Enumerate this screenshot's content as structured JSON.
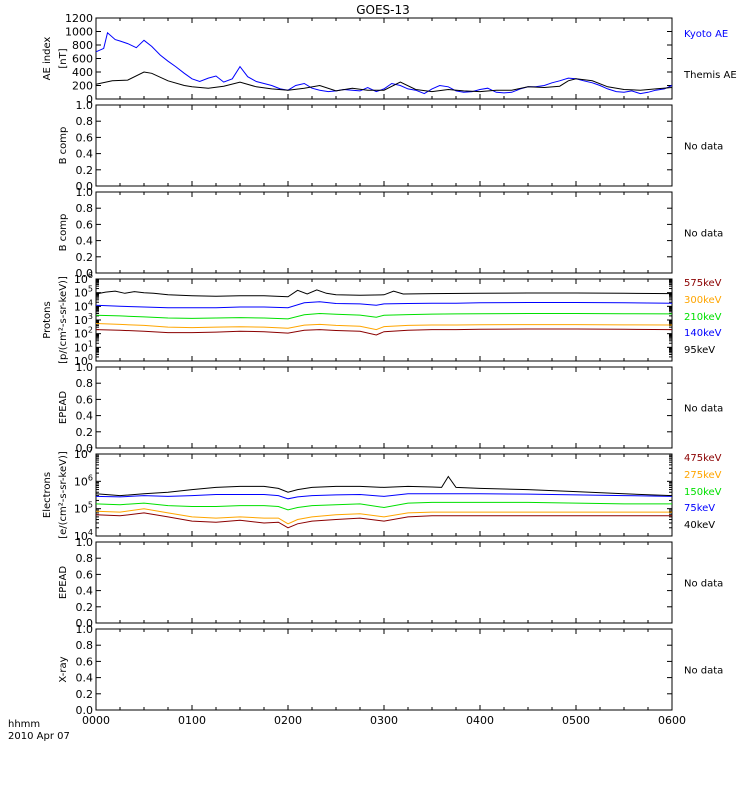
{
  "title": "GOES-13",
  "time_axis": {
    "ticks": [
      "0000",
      "0100",
      "0200",
      "0300",
      "0400",
      "0500",
      "0600"
    ],
    "label_line1": "hhmm",
    "label_line2": "2010 Apr 07"
  },
  "chart_data": [
    {
      "id": "ae",
      "type": "line",
      "ylabel_line1": "AE index",
      "ylabel_line2": "[nT]",
      "ylim": [
        0,
        1200
      ],
      "yticks": [
        "0",
        "200",
        "400",
        "600",
        "800",
        "1000",
        "1200"
      ],
      "series": [
        {
          "name": "Kyoto AE",
          "color": "#0000ff",
          "x": [
            0,
            0.08,
            0.12,
            0.2,
            0.25,
            0.33,
            0.42,
            0.5,
            0.58,
            0.67,
            0.75,
            0.83,
            0.92,
            1.0,
            1.08,
            1.17,
            1.25,
            1.33,
            1.42,
            1.5,
            1.58,
            1.67,
            1.75,
            1.83,
            1.92,
            2.0,
            2.08,
            2.17,
            2.25,
            2.33,
            2.42,
            2.5,
            2.58,
            2.67,
            2.75,
            2.83,
            2.92,
            3.0,
            3.08,
            3.17,
            3.25,
            3.33,
            3.42,
            3.5,
            3.58,
            3.67,
            3.75,
            3.83,
            3.92,
            4.0,
            4.08,
            4.17,
            4.25,
            4.33,
            4.42,
            4.5,
            4.58,
            4.67,
            4.75,
            4.83,
            4.92,
            5.0,
            5.08,
            5.17,
            5.25,
            5.33,
            5.42,
            5.5,
            5.58,
            5.67,
            5.75,
            5.83,
            5.92,
            6.0
          ],
          "y": [
            700,
            750,
            980,
            880,
            860,
            820,
            760,
            870,
            780,
            650,
            560,
            480,
            380,
            300,
            260,
            310,
            340,
            250,
            300,
            480,
            330,
            260,
            230,
            200,
            150,
            130,
            200,
            230,
            160,
            130,
            110,
            120,
            140,
            130,
            120,
            170,
            110,
            150,
            230,
            200,
            150,
            130,
            80,
            150,
            200,
            180,
            120,
            100,
            110,
            140,
            160,
            100,
            90,
            100,
            150,
            180,
            180,
            200,
            240,
            270,
            310,
            300,
            270,
            240,
            200,
            150,
            110,
            100,
            120,
            80,
            100,
            130,
            150,
            200
          ]
        },
        {
          "name": "Themis AE",
          "color": "#000000",
          "x": [
            0,
            0.17,
            0.33,
            0.5,
            0.58,
            0.75,
            0.92,
            1.0,
            1.17,
            1.33,
            1.5,
            1.67,
            1.83,
            2.0,
            2.17,
            2.33,
            2.5,
            2.67,
            2.83,
            3.0,
            3.17,
            3.33,
            3.5,
            3.67,
            3.83,
            4.0,
            4.17,
            4.33,
            4.5,
            4.67,
            4.83,
            4.92,
            5.0,
            5.17,
            5.33,
            5.5,
            5.67,
            5.83,
            6.0
          ],
          "y": [
            220,
            270,
            280,
            400,
            380,
            270,
            200,
            180,
            160,
            190,
            250,
            180,
            150,
            130,
            160,
            200,
            120,
            160,
            130,
            130,
            250,
            140,
            110,
            140,
            120,
            110,
            130,
            130,
            180,
            170,
            190,
            270,
            300,
            270,
            180,
            140,
            130,
            150,
            170
          ]
        }
      ],
      "annotation": ""
    },
    {
      "id": "bcomp1",
      "type": "line",
      "ylabel_line1": "B comp",
      "ylim": [
        0,
        1
      ],
      "yticks": [
        "0.0",
        "0.2",
        "0.4",
        "0.6",
        "0.8",
        "1.0"
      ],
      "series": [],
      "annotation": "No data"
    },
    {
      "id": "bcomp2",
      "type": "line",
      "ylabel_line1": "B comp",
      "ylim": [
        0,
        1
      ],
      "yticks": [
        "0.0",
        "0.2",
        "0.4",
        "0.6",
        "0.8",
        "1.0"
      ],
      "series": [],
      "annotation": "No data"
    },
    {
      "id": "protons",
      "type": "line",
      "yscale": "log",
      "ylabel_line1": "Protons",
      "ylabel_line2": "[p/(cm²-s-sr-keV)]",
      "ylim_exp": [
        0,
        6
      ],
      "yticks": [
        {
          "base": "10",
          "exp": "0"
        },
        {
          "base": "10",
          "exp": "1"
        },
        {
          "base": "10",
          "exp": "2"
        },
        {
          "base": "10",
          "exp": "3"
        },
        {
          "base": "10",
          "exp": "4"
        },
        {
          "base": "10",
          "exp": "5"
        },
        {
          "base": "10",
          "exp": "6"
        }
      ],
      "series": [
        {
          "name": "575keV",
          "color": "#8b0000",
          "x": [
            0,
            0.25,
            0.5,
            0.75,
            1.0,
            1.25,
            1.5,
            1.75,
            2.0,
            2.17,
            2.33,
            2.5,
            2.75,
            2.92,
            3.0,
            3.25,
            3.5,
            3.75,
            4.0,
            4.5,
            5.0,
            5.5,
            6.0
          ],
          "y": [
            200,
            180,
            150,
            120,
            120,
            130,
            150,
            140,
            110,
            180,
            200,
            170,
            150,
            80,
            140,
            180,
            200,
            200,
            210,
            220,
            220,
            210,
            200
          ]
        },
        {
          "name": "300keV",
          "color": "#ffa500",
          "x": [
            0,
            0.25,
            0.5,
            0.75,
            1.0,
            1.25,
            1.5,
            1.75,
            2.0,
            2.17,
            2.33,
            2.5,
            2.75,
            2.92,
            3.0,
            3.25,
            3.5,
            3.75,
            4.0,
            4.5,
            5.0,
            5.5,
            6.0
          ],
          "y": [
            550,
            480,
            400,
            300,
            280,
            300,
            320,
            300,
            250,
            420,
            480,
            400,
            350,
            200,
            330,
            400,
            430,
            430,
            450,
            460,
            460,
            440,
            430
          ]
        },
        {
          "name": "210keV",
          "color": "#00e000",
          "x": [
            0,
            0.25,
            0.5,
            0.75,
            1.0,
            1.25,
            1.5,
            1.75,
            2.0,
            2.17,
            2.33,
            2.5,
            2.75,
            2.92,
            3.0,
            3.25,
            3.5,
            3.75,
            4.0,
            4.5,
            5.0,
            5.5,
            6.0
          ],
          "y": [
            2200,
            2000,
            1700,
            1400,
            1300,
            1400,
            1500,
            1400,
            1200,
            2400,
            3000,
            2600,
            2300,
            1600,
            2200,
            2500,
            2700,
            2800,
            2900,
            3000,
            3000,
            2900,
            2800
          ]
        },
        {
          "name": "140keV",
          "color": "#0000ff",
          "x": [
            0,
            0.25,
            0.5,
            0.75,
            1.0,
            1.25,
            1.5,
            1.75,
            2.0,
            2.17,
            2.33,
            2.5,
            2.75,
            2.92,
            3.0,
            3.25,
            3.5,
            3.75,
            4.0,
            4.5,
            5.0,
            5.5,
            6.0
          ],
          "y": [
            12000,
            10000,
            9000,
            8000,
            8000,
            8000,
            9000,
            9000,
            8000,
            18000,
            22000,
            16000,
            15000,
            12000,
            15000,
            16000,
            17000,
            17000,
            18000,
            19000,
            19000,
            18000,
            17000
          ]
        },
        {
          "name": "95keV",
          "color": "#000000",
          "x": [
            0,
            0.1,
            0.2,
            0.3,
            0.4,
            0.5,
            0.6,
            0.75,
            1.0,
            1.25,
            1.5,
            1.75,
            2.0,
            2.1,
            2.2,
            2.3,
            2.4,
            2.5,
            2.75,
            3.0,
            3.1,
            3.2,
            3.5,
            4.0,
            4.5,
            5.0,
            5.5,
            6.0
          ],
          "y": [
            80000,
            110000,
            130000,
            90000,
            120000,
            100000,
            90000,
            70000,
            60000,
            55000,
            60000,
            60000,
            50000,
            150000,
            80000,
            160000,
            90000,
            70000,
            65000,
            70000,
            130000,
            80000,
            85000,
            90000,
            95000,
            95000,
            90000,
            85000
          ]
        }
      ],
      "annotation": ""
    },
    {
      "id": "epead1",
      "type": "line",
      "ylabel_line1": "EPEAD",
      "ylim": [
        0,
        1
      ],
      "yticks": [
        "0.0",
        "0.2",
        "0.4",
        "0.6",
        "0.8",
        "1.0"
      ],
      "series": [],
      "annotation": "No data"
    },
    {
      "id": "electrons",
      "type": "line",
      "yscale": "log",
      "ylabel_line1": "Electrons",
      "ylabel_line2": "[e/(cm²-s-sr-keV)]",
      "ylim_exp": [
        4,
        7
      ],
      "yticks": [
        {
          "base": "10",
          "exp": "4"
        },
        {
          "base": "10",
          "exp": "5"
        },
        {
          "base": "10",
          "exp": "6"
        },
        {
          "base": "10",
          "exp": "7"
        }
      ],
      "series": [
        {
          "name": "475keV",
          "color": "#8b0000",
          "x": [
            0,
            0.25,
            0.5,
            0.75,
            1.0,
            1.25,
            1.5,
            1.75,
            1.9,
            2.0,
            2.1,
            2.25,
            2.5,
            2.75,
            3.0,
            3.25,
            3.5,
            4.0,
            4.5,
            5.0,
            5.5,
            6.0
          ],
          "y": [
            60000,
            55000,
            70000,
            50000,
            35000,
            32000,
            38000,
            30000,
            32000,
            20000,
            28000,
            35000,
            40000,
            45000,
            35000,
            50000,
            55000,
            55000,
            55000,
            55000,
            55000,
            55000
          ]
        },
        {
          "name": "275keV",
          "color": "#ffa500",
          "x": [
            0,
            0.25,
            0.5,
            0.75,
            1.0,
            1.25,
            1.5,
            1.75,
            1.9,
            2.0,
            2.1,
            2.25,
            2.5,
            2.75,
            3.0,
            3.25,
            3.5,
            4.0,
            4.5,
            5.0,
            5.5,
            6.0
          ],
          "y": [
            80000,
            75000,
            100000,
            70000,
            50000,
            45000,
            50000,
            45000,
            45000,
            28000,
            40000,
            50000,
            60000,
            65000,
            50000,
            70000,
            75000,
            75000,
            75000,
            75000,
            75000,
            75000
          ]
        },
        {
          "name": "150keV",
          "color": "#00e000",
          "x": [
            0,
            0.25,
            0.5,
            0.75,
            1.0,
            1.25,
            1.5,
            1.75,
            1.9,
            2.0,
            2.1,
            2.25,
            2.5,
            2.75,
            3.0,
            3.25,
            3.5,
            4.0,
            4.5,
            5.0,
            5.5,
            6.0
          ],
          "y": [
            150000,
            140000,
            160000,
            130000,
            120000,
            120000,
            130000,
            130000,
            120000,
            90000,
            110000,
            130000,
            140000,
            150000,
            110000,
            160000,
            170000,
            170000,
            170000,
            160000,
            150000,
            150000
          ]
        },
        {
          "name": "75keV",
          "color": "#0000ff",
          "x": [
            0,
            0.25,
            0.5,
            0.75,
            1.0,
            1.25,
            1.5,
            1.75,
            1.9,
            2.0,
            2.1,
            2.25,
            2.5,
            2.75,
            3.0,
            3.25,
            3.5,
            4.0,
            4.5,
            5.0,
            5.5,
            6.0
          ],
          "y": [
            280000,
            270000,
            300000,
            280000,
            300000,
            330000,
            330000,
            330000,
            300000,
            230000,
            270000,
            300000,
            320000,
            330000,
            280000,
            350000,
            350000,
            350000,
            340000,
            320000,
            300000,
            280000
          ]
        },
        {
          "name": "40keV",
          "color": "#000000",
          "x": [
            0,
            0.25,
            0.5,
            0.75,
            1.0,
            1.25,
            1.5,
            1.75,
            1.9,
            2.0,
            2.1,
            2.25,
            2.5,
            2.75,
            3.0,
            3.25,
            3.5,
            3.6,
            3.67,
            3.75,
            4.0,
            4.5,
            5.0,
            5.5,
            6.0
          ],
          "y": [
            350000,
            300000,
            350000,
            400000,
            500000,
            600000,
            650000,
            650000,
            550000,
            400000,
            500000,
            600000,
            650000,
            650000,
            600000,
            650000,
            620000,
            600000,
            1500000,
            600000,
            550000,
            500000,
            420000,
            350000,
            300000
          ]
        }
      ],
      "annotation": ""
    },
    {
      "id": "epead2",
      "type": "line",
      "ylabel_line1": "EPEAD",
      "ylim": [
        0,
        1
      ],
      "yticks": [
        "0.0",
        "0.2",
        "0.4",
        "0.6",
        "0.8",
        "1.0"
      ],
      "series": [],
      "annotation": "No data"
    },
    {
      "id": "xray",
      "type": "line",
      "ylabel_line1": "X-ray",
      "ylim": [
        0,
        1
      ],
      "yticks": [
        "0.0",
        "0.2",
        "0.4",
        "0.6",
        "0.8",
        "1.0"
      ],
      "series": [],
      "annotation": "No data"
    }
  ]
}
